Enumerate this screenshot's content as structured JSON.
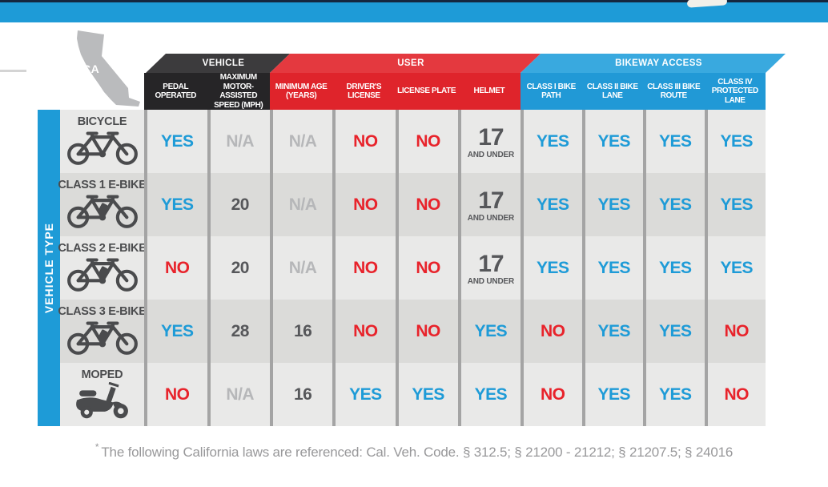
{
  "chart_data": {
    "type": "table",
    "row_axis_label": "VEHICLE TYPE",
    "groups": [
      {
        "label": "VEHICLE",
        "color": "#2A292B"
      },
      {
        "label": "USER",
        "color": "#DF242B"
      },
      {
        "label": "BIKEWAY ACCESS",
        "color": "#2199D6"
      }
    ],
    "columns": [
      {
        "label": "PEDAL OPERATED",
        "group": "VEHICLE"
      },
      {
        "label": "MAXIMUM MOTOR-ASSISTED SPEED (MPH)",
        "group": "VEHICLE"
      },
      {
        "label": "MINIMUM AGE (YEARS)",
        "group": "USER"
      },
      {
        "label": "DRIVER'S LICENSE",
        "group": "USER"
      },
      {
        "label": "LICENSE PLATE",
        "group": "USER"
      },
      {
        "label": "HELMET",
        "group": "USER"
      },
      {
        "label": "CLASS I BIKE PATH",
        "group": "BIKEWAY ACCESS"
      },
      {
        "label": "CLASS II BIKE LANE",
        "group": "BIKEWAY ACCESS"
      },
      {
        "label": "CLASS III BIKE ROUTE",
        "group": "BIKEWAY ACCESS"
      },
      {
        "label": "CLASS IV PROTECTED LANE",
        "group": "BIKEWAY ACCESS"
      }
    ],
    "rows": [
      {
        "label": "BICYCLE",
        "icon": "bicycle-icon",
        "cells": [
          {
            "text": "YES",
            "color": "blue"
          },
          {
            "text": "N/A",
            "color": "na"
          },
          {
            "text": "N/A",
            "color": "na"
          },
          {
            "text": "NO",
            "color": "red"
          },
          {
            "text": "NO",
            "color": "red"
          },
          {
            "text": "17",
            "sub": "AND UNDER",
            "color": "dark"
          },
          {
            "text": "YES",
            "color": "blue"
          },
          {
            "text": "YES",
            "color": "blue"
          },
          {
            "text": "YES",
            "color": "blue"
          },
          {
            "text": "YES",
            "color": "blue"
          }
        ]
      },
      {
        "label": "CLASS 1 E-BIKE",
        "icon": "ebike-icon",
        "cells": [
          {
            "text": "YES",
            "color": "blue"
          },
          {
            "text": "20",
            "color": "dark"
          },
          {
            "text": "N/A",
            "color": "na"
          },
          {
            "text": "NO",
            "color": "red"
          },
          {
            "text": "NO",
            "color": "red"
          },
          {
            "text": "17",
            "sub": "AND UNDER",
            "color": "dark"
          },
          {
            "text": "YES",
            "color": "blue"
          },
          {
            "text": "YES",
            "color": "blue"
          },
          {
            "text": "YES",
            "color": "blue"
          },
          {
            "text": "YES",
            "color": "blue"
          }
        ]
      },
      {
        "label": "CLASS 2 E-BIKE",
        "icon": "ebike-icon",
        "cells": [
          {
            "text": "NO",
            "color": "red"
          },
          {
            "text": "20",
            "color": "dark"
          },
          {
            "text": "N/A",
            "color": "na"
          },
          {
            "text": "NO",
            "color": "red"
          },
          {
            "text": "NO",
            "color": "red"
          },
          {
            "text": "17",
            "sub": "AND UNDER",
            "color": "dark"
          },
          {
            "text": "YES",
            "color": "blue"
          },
          {
            "text": "YES",
            "color": "blue"
          },
          {
            "text": "YES",
            "color": "blue"
          },
          {
            "text": "YES",
            "color": "blue"
          }
        ]
      },
      {
        "label": "CLASS 3 E-BIKE",
        "icon": "ebike-icon",
        "cells": [
          {
            "text": "YES",
            "color": "blue"
          },
          {
            "text": "28",
            "color": "dark"
          },
          {
            "text": "16",
            "color": "dark"
          },
          {
            "text": "NO",
            "color": "red"
          },
          {
            "text": "NO",
            "color": "red"
          },
          {
            "text": "YES",
            "color": "blue"
          },
          {
            "text": "NO",
            "color": "red"
          },
          {
            "text": "YES",
            "color": "blue"
          },
          {
            "text": "YES",
            "color": "blue"
          },
          {
            "text": "NO",
            "color": "red"
          }
        ]
      },
      {
        "label": "MOPED",
        "icon": "moped-icon",
        "cells": [
          {
            "text": "NO",
            "color": "red"
          },
          {
            "text": "N/A",
            "color": "na"
          },
          {
            "text": "16",
            "color": "dark"
          },
          {
            "text": "YES",
            "color": "blue"
          },
          {
            "text": "YES",
            "color": "blue"
          },
          {
            "text": "YES",
            "color": "blue"
          },
          {
            "text": "NO",
            "color": "red"
          },
          {
            "text": "YES",
            "color": "blue"
          },
          {
            "text": "YES",
            "color": "blue"
          },
          {
            "text": "NO",
            "color": "red"
          }
        ]
      }
    ]
  },
  "map": {
    "label": "CA"
  },
  "footnote": {
    "star": "*",
    "text": "The following California laws are referenced: Cal. Veh. Code. § 312.5; § 21200 - 21212; § 21207.5; § 24016"
  },
  "colors": {
    "accent_blue": "#1E9BD7",
    "accent_red": "#E8232B",
    "header_black": "#262527",
    "value_dark": "#56575A",
    "value_na": "#B6B7B9"
  }
}
